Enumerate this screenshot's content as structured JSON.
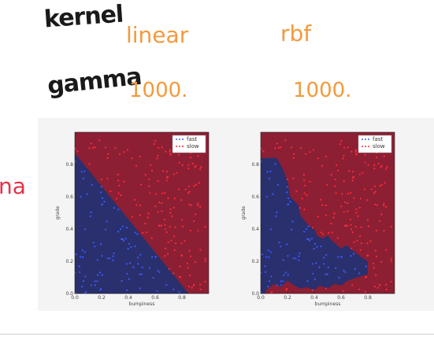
{
  "annotations": {
    "kernel_label": "kernel",
    "gamma_label": "gamma",
    "kernel_values": [
      "linear",
      "rbf"
    ],
    "gamma_values": [
      "1000.",
      "1000."
    ],
    "left_edge_text": "na"
  },
  "colors": {
    "fast_region": "#2a2f6e",
    "slow_region": "#8c1f33",
    "fast_point": "#3b5bff",
    "slow_point": "#ff2a3a",
    "handwriting_black": "#1a1a1a",
    "handwriting_orange": "#f29a3d",
    "handwriting_pink": "#e8304a"
  },
  "chart_data": [
    {
      "type": "scatter",
      "subtitle": "linear",
      "xlabel": "bumpiness",
      "ylabel": "grade",
      "xlim": [
        0.0,
        1.0
      ],
      "ylim": [
        0.0,
        1.0
      ],
      "xticks": [
        "0.0",
        "0.2",
        "0.4",
        "0.6",
        "0.8"
      ],
      "yticks": [
        "0.0",
        "0.2",
        "0.4",
        "0.6",
        "0.8"
      ],
      "legend": {
        "position": "top-right",
        "entries": [
          "fast",
          "slow"
        ]
      },
      "decision_boundary": {
        "kind": "line",
        "x": [
          0.0,
          0.85
        ],
        "y": [
          0.87,
          0.0
        ]
      }
    },
    {
      "type": "scatter",
      "subtitle": "rbf",
      "xlabel": "bumpiness",
      "ylabel": "grade",
      "xlim": [
        0.0,
        1.0
      ],
      "ylim": [
        0.0,
        1.0
      ],
      "xticks": [
        "0.0",
        "0.2",
        "0.4",
        "0.6",
        "0.8"
      ],
      "yticks": [
        "0.0",
        "0.2",
        "0.4",
        "0.6",
        "0.8"
      ],
      "legend": {
        "position": "top-right",
        "entries": [
          "fast",
          "slow"
        ]
      },
      "decision_boundary": {
        "kind": "polygon",
        "x": [
          0.0,
          0.0,
          0.12,
          0.16,
          0.2,
          0.22,
          0.28,
          0.3,
          0.36,
          0.4,
          0.42,
          0.46,
          0.5,
          0.54,
          0.6,
          0.64,
          0.7,
          0.76,
          0.8,
          0.8,
          0.72,
          0.65,
          0.6,
          0.55,
          0.5,
          0.44,
          0.4,
          0.34,
          0.3,
          0.25,
          0.2,
          0.15,
          0.1,
          0.05,
          0.03,
          0.0,
          0.0
        ],
        "y": [
          0.0,
          0.84,
          0.84,
          0.78,
          0.7,
          0.6,
          0.55,
          0.48,
          0.42,
          0.4,
          0.36,
          0.34,
          0.36,
          0.32,
          0.28,
          0.3,
          0.26,
          0.22,
          0.2,
          0.12,
          0.1,
          0.08,
          0.05,
          0.06,
          0.03,
          0.05,
          0.02,
          0.04,
          0.03,
          0.05,
          0.08,
          0.04,
          0.06,
          0.03,
          0.0,
          0.0,
          0.0
        ]
      }
    }
  ]
}
